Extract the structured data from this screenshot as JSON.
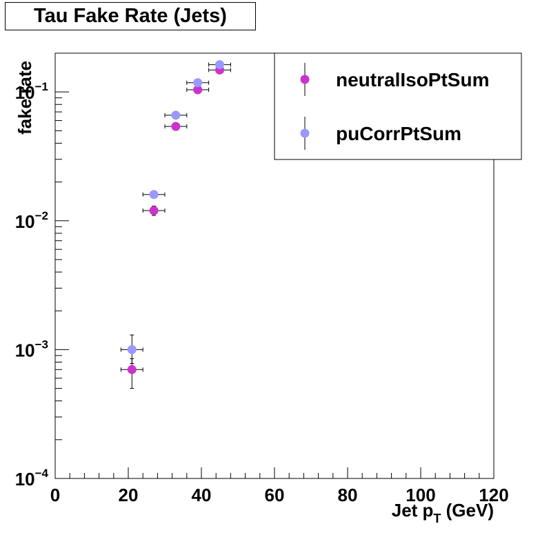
{
  "title": "Tau Fake Rate (Jets)",
  "colors": {
    "neutral": "#cc33cc",
    "pucorr": "#9999ff",
    "axis": "#000000"
  },
  "chart_data": {
    "type": "scatter",
    "title": "Tau Fake Rate (Jets)",
    "xlabel_main": "Jet p",
    "xlabel_sub": "T",
    "xlabel_unit": " (GeV)",
    "ylabel": "fake rate",
    "xlim": [
      0,
      120
    ],
    "ylim": [
      0.0001,
      0.2
    ],
    "yscale": "log",
    "xticks": [
      0,
      20,
      40,
      60,
      80,
      100,
      120
    ],
    "xtick_labels": [
      "0",
      "20",
      "40",
      "60",
      "80",
      "100",
      "120"
    ],
    "yticks": [
      {
        "value": 0.0001,
        "base": "10",
        "exp": "−4"
      },
      {
        "value": 0.001,
        "base": "10",
        "exp": "−3"
      },
      {
        "value": 0.01,
        "base": "10",
        "exp": "−2"
      },
      {
        "value": 0.1,
        "base": "10",
        "exp": "−1"
      }
    ],
    "legend_position": "top-right",
    "series": [
      {
        "name": "neutralIsoPtSum",
        "color": "#cc33cc",
        "points": [
          {
            "x": 21,
            "xerr": 3,
            "y": 0.0007,
            "ylo": 0.0005,
            "yhi": 0.00085
          },
          {
            "x": 27,
            "xerr": 3,
            "y": 0.012,
            "ylo": 0.011,
            "yhi": 0.013
          },
          {
            "x": 33,
            "xerr": 3,
            "y": 0.054,
            "ylo": 0.052,
            "yhi": 0.056
          },
          {
            "x": 39,
            "xerr": 3,
            "y": 0.104,
            "ylo": 0.1,
            "yhi": 0.108
          },
          {
            "x": 45,
            "xerr": 3,
            "y": 0.148,
            "ylo": 0.143,
            "yhi": 0.153
          }
        ]
      },
      {
        "name": "puCorrPtSum",
        "color": "#9999ff",
        "points": [
          {
            "x": 21,
            "xerr": 3,
            "y": 0.001,
            "ylo": 0.00078,
            "yhi": 0.0013
          },
          {
            "x": 27,
            "xerr": 3,
            "y": 0.016,
            "ylo": 0.015,
            "yhi": 0.017
          },
          {
            "x": 33,
            "xerr": 3,
            "y": 0.066,
            "ylo": 0.063,
            "yhi": 0.069
          },
          {
            "x": 39,
            "xerr": 3,
            "y": 0.118,
            "ylo": 0.113,
            "yhi": 0.123
          },
          {
            "x": 45,
            "xerr": 3,
            "y": 0.163,
            "ylo": 0.157,
            "yhi": 0.169
          }
        ]
      }
    ]
  }
}
